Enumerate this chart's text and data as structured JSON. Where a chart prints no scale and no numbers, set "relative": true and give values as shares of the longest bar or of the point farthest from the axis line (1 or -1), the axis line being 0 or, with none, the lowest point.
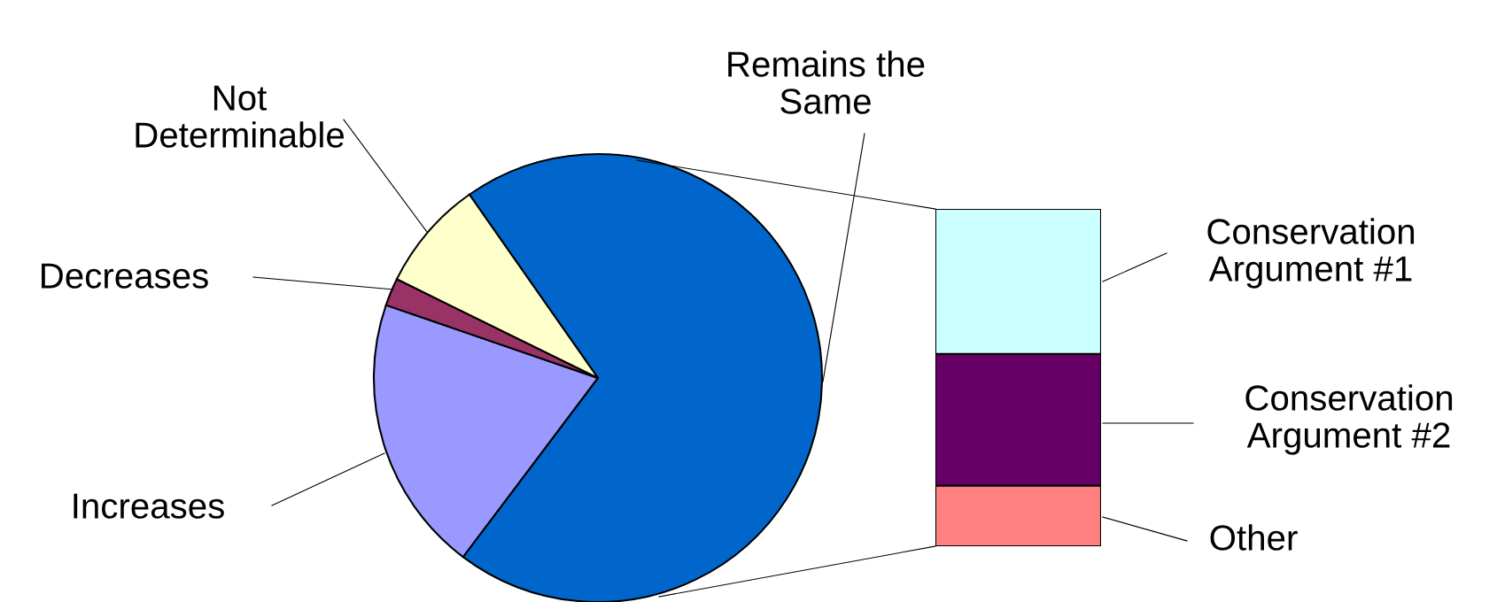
{
  "chart_data": [
    {
      "type": "pie",
      "categories": [
        "Remains the Same",
        "Increases",
        "Decreases",
        "Not Determinable"
      ],
      "values": [
        70,
        20,
        2,
        8
      ],
      "colors": [
        "#0066cc",
        "#9999ff",
        "#993366",
        "#ffffcc"
      ]
    },
    {
      "type": "bar",
      "stacked": true,
      "relative": true,
      "legend": "right",
      "categories": [
        null
      ],
      "series": [
        {
          "name": "Other",
          "color": "#ff8080",
          "values": [
            0.18
          ]
        },
        {
          "name": "Conservation Argument #2",
          "color": "#660066",
          "values": [
            0.39
          ]
        },
        {
          "name": "Conservation Argument #1",
          "color": "#ccffff",
          "values": [
            0.43
          ]
        }
      ]
    }
  ]
}
